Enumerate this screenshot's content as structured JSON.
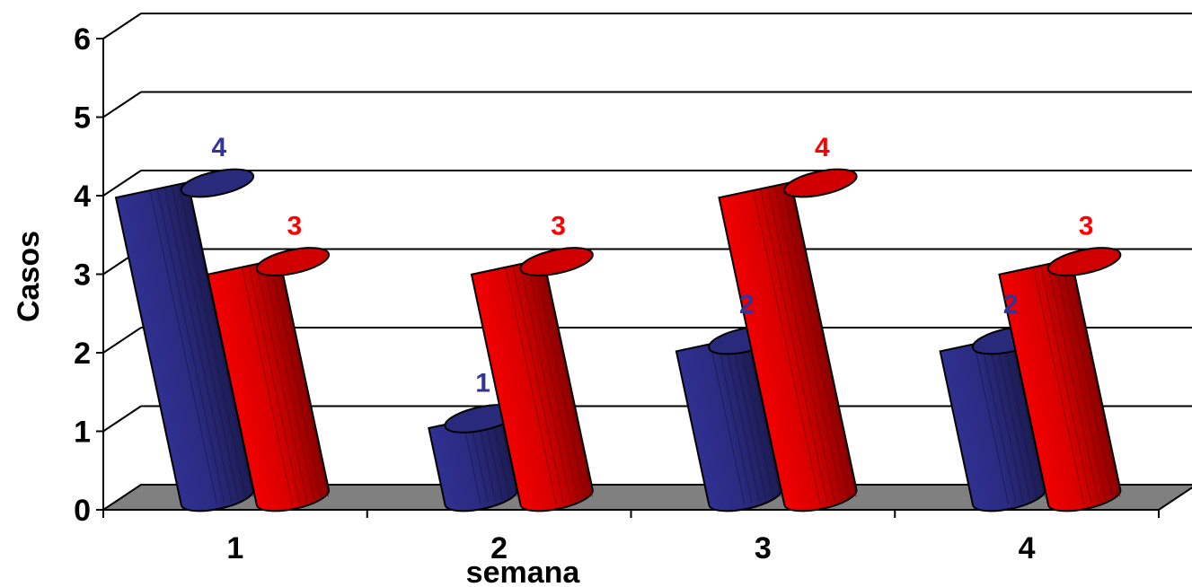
{
  "chart_data": {
    "type": "bar",
    "style": "3d-cylinder",
    "categories": [
      "1",
      "2",
      "3",
      "4"
    ],
    "series": [
      {
        "values": [
          4,
          1,
          2,
          2
        ],
        "color": "#333399",
        "label_color": "#333399"
      },
      {
        "values": [
          3,
          3,
          4,
          3
        ],
        "color": "#ff0000",
        "label_color": "#ff0000"
      }
    ],
    "xlabel": "semana",
    "ylabel": "Casos",
    "ylim": [
      0,
      6
    ],
    "yticks": [
      0,
      1,
      2,
      3,
      4,
      5,
      6
    ],
    "grid": true,
    "floor_color": "#808080",
    "legend": "none"
  }
}
